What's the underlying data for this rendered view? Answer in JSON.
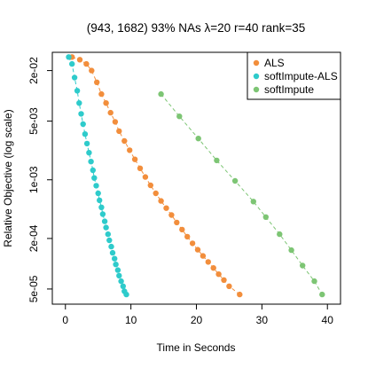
{
  "chart_data": {
    "type": "scatter",
    "title": "(943, 1682)   93% NAs   λ=20   r=40   rank=35",
    "xlabel": "Time in Seconds",
    "ylabel": "Relative Objective (log scale)",
    "xlim": [
      -2,
      42
    ],
    "ylim": [
      3.3e-05,
      0.033
    ],
    "y_scale": "log",
    "x_ticks": [
      0,
      10,
      20,
      30,
      40
    ],
    "x_tick_labels": [
      "0",
      "10",
      "20",
      "30",
      "40"
    ],
    "y_ticks": [
      5e-05,
      0.0002,
      0.001,
      0.005,
      0.02
    ],
    "y_tick_labels": [
      "5e-05",
      "2e-04",
      "1e-03",
      "5e-03",
      "2e-02"
    ],
    "grid": false,
    "legend": {
      "position": "top-right"
    },
    "colors": {
      "ALS": "#f28e3c",
      "softImpute-ALS": "#2ecbcb",
      "softImpute": "#7dc574"
    },
    "series": [
      {
        "name": "ALS",
        "color": "#f28e3c",
        "x": [
          1.0,
          2.2,
          3.2,
          4.0,
          4.8,
          5.5,
          6.2,
          6.9,
          7.6,
          8.2,
          9.0,
          9.8,
          10.6,
          11.4,
          12.2,
          13.0,
          13.8,
          14.6,
          15.4,
          16.2,
          17.0,
          17.8,
          18.6,
          19.4,
          20.2,
          21.0,
          21.8,
          22.6,
          23.4,
          24.2,
          25.0,
          26.6
        ],
        "y": [
          0.029,
          0.027,
          0.024,
          0.02,
          0.0145,
          0.0105,
          0.0082,
          0.0063,
          0.0049,
          0.0038,
          0.0029,
          0.00225,
          0.00175,
          0.00137,
          0.00108,
          0.00086,
          0.00069,
          0.00056,
          0.00046,
          0.00038,
          0.00031,
          0.000255,
          0.00021,
          0.000175,
          0.000147,
          0.000124,
          0.000105,
          8.9e-05,
          7.5e-05,
          6.4e-05,
          5.4e-05,
          4.3e-05
        ]
      },
      {
        "name": "softImpute-ALS",
        "color": "#2ecbcb",
        "x": [
          0.5,
          1.0,
          1.4,
          1.8,
          2.1,
          2.4,
          2.7,
          3.0,
          3.3,
          3.6,
          3.9,
          4.2,
          4.4,
          4.7,
          5.0,
          5.2,
          5.5,
          5.7,
          6.0,
          6.2,
          6.5,
          6.7,
          7.0,
          7.2,
          7.5,
          7.7,
          8.0,
          8.2,
          8.5,
          8.8,
          9.0,
          9.3
        ],
        "y": [
          0.029,
          0.024,
          0.0165,
          0.0115,
          0.0082,
          0.0061,
          0.0046,
          0.0035,
          0.0027,
          0.0021,
          0.00165,
          0.0013,
          0.00105,
          0.00085,
          0.00069,
          0.00057,
          0.00047,
          0.00039,
          0.00032,
          0.00027,
          0.000225,
          0.00019,
          0.00016,
          0.000135,
          0.000115,
          9.8e-05,
          8.4e-05,
          7.2e-05,
          6.2e-05,
          5.4e-05,
          4.7e-05,
          4.3e-05
        ]
      },
      {
        "name": "softImpute",
        "color": "#7dc574",
        "x": [
          14.6,
          17.4,
          20.3,
          23.1,
          25.9,
          28.7,
          30.6,
          32.7,
          34.5,
          36.2,
          38.0,
          39.2
        ],
        "y": [
          0.0105,
          0.0057,
          0.0031,
          0.0017,
          0.00097,
          0.00055,
          0.00036,
          0.000225,
          0.000145,
          9.5e-05,
          6.2e-05,
          4.3e-05
        ]
      }
    ]
  }
}
